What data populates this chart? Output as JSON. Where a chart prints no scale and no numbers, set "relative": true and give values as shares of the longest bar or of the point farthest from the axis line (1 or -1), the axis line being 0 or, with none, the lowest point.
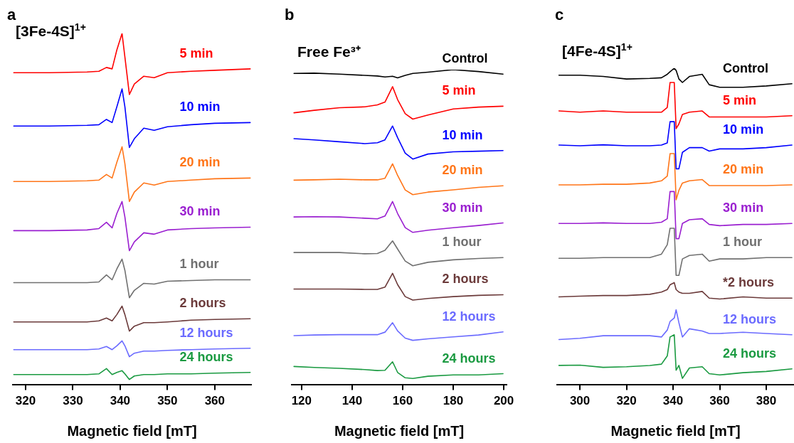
{
  "chart_data": [
    {
      "type": "line",
      "title": "a",
      "subtitle": "[3Fe-4S]$^{1+}$",
      "xlabel": "Magnetic field [mT]",
      "relative": true,
      "legend": false,
      "marker": "none",
      "tick_labels": "x",
      "xlim": [
        317.3,
        367.7
      ],
      "xticks": [
        320,
        330,
        340,
        350,
        360
      ],
      "x": [
        317.5,
        325,
        333,
        335.5,
        337.1,
        338.3,
        339.3,
        340.4,
        341.0,
        341.95,
        343,
        345,
        347.2,
        350,
        355,
        360,
        367.5
      ],
      "series": [
        {
          "name": "5 min",
          "color": "#ff0000",
          "values": [
            0.888,
            0.888,
            0.89,
            0.892,
            0.903,
            0.899,
            0.953,
            1.0,
            0.933,
            0.826,
            0.856,
            0.878,
            0.874,
            0.888,
            0.892,
            0.895,
            0.899
          ]
        },
        {
          "name": "10 min",
          "color": "#0000ff",
          "values": [
            0.736,
            0.736,
            0.738,
            0.74,
            0.755,
            0.746,
            0.791,
            0.842,
            0.791,
            0.675,
            0.7,
            0.73,
            0.724,
            0.734,
            0.74,
            0.744,
            0.746
          ]
        },
        {
          "name": "20 min",
          "color": "#ff7518",
          "values": [
            0.578,
            0.578,
            0.58,
            0.582,
            0.598,
            0.588,
            0.633,
            0.677,
            0.629,
            0.521,
            0.548,
            0.574,
            0.568,
            0.578,
            0.582,
            0.586,
            0.588
          ]
        },
        {
          "name": "30 min",
          "color": "#9a1fd0",
          "values": [
            0.438,
            0.438,
            0.44,
            0.444,
            0.462,
            0.446,
            0.487,
            0.521,
            0.477,
            0.381,
            0.406,
            0.432,
            0.428,
            0.44,
            0.444,
            0.446,
            0.448
          ]
        },
        {
          "name": "1 hour",
          "color": "#707070",
          "values": [
            0.29,
            0.29,
            0.29,
            0.292,
            0.312,
            0.298,
            0.329,
            0.357,
            0.325,
            0.247,
            0.268,
            0.288,
            0.286,
            0.294,
            0.296,
            0.298,
            0.298
          ]
        },
        {
          "name": "2 hours",
          "color": "#6b3a3a",
          "values": [
            0.178,
            0.178,
            0.178,
            0.181,
            0.189,
            0.181,
            0.199,
            0.223,
            0.199,
            0.152,
            0.166,
            0.176,
            0.176,
            0.178,
            0.183,
            0.185,
            0.187
          ]
        },
        {
          "name": "12 hours",
          "color": "#6b6bff",
          "values": [
            0.099,
            0.099,
            0.099,
            0.101,
            0.108,
            0.099,
            0.11,
            0.124,
            0.11,
            0.079,
            0.089,
            0.095,
            0.095,
            0.097,
            0.099,
            0.101,
            0.103
          ]
        },
        {
          "name": "24 hours",
          "color": "#1a9a41",
          "values": [
            0.028,
            0.028,
            0.028,
            0.03,
            0.045,
            0.028,
            0.034,
            0.039,
            0.03,
            0.014,
            0.024,
            0.028,
            0.028,
            0.03,
            0.03,
            0.032,
            0.034
          ]
        }
      ]
    },
    {
      "type": "line",
      "title": "b",
      "subtitle": "Free Fe³⁺",
      "xlabel": "Magnetic field [mT]",
      "relative": true,
      "legend": false,
      "marker": "none",
      "tick_labels": "x",
      "xlim": [
        116.1,
        201.1
      ],
      "xticks": [
        120,
        140,
        160,
        180,
        200
      ],
      "x": [
        117,
        125,
        135,
        145,
        150,
        153,
        156,
        158,
        161,
        164,
        170,
        180,
        190,
        199.7
      ],
      "series": [
        {
          "name": "Control",
          "color": "#000000",
          "values": [
            0.988,
            0.989,
            0.986,
            0.982,
            0.98,
            0.977,
            0.979,
            0.974,
            0.982,
            0.988,
            0.992,
            1.0,
            0.994,
            0.986
          ]
        },
        {
          "name": "5 min",
          "color": "#ff0000",
          "values": [
            0.863,
            0.871,
            0.879,
            0.882,
            0.888,
            0.897,
            0.946,
            0.905,
            0.86,
            0.843,
            0.856,
            0.875,
            0.881,
            0.884
          ]
        },
        {
          "name": "10 min",
          "color": "#0000ff",
          "values": [
            0.781,
            0.777,
            0.771,
            0.765,
            0.768,
            0.777,
            0.821,
            0.784,
            0.735,
            0.716,
            0.732,
            0.739,
            0.741,
            0.743
          ]
        },
        {
          "name": "20 min",
          "color": "#ff7518",
          "values": [
            0.649,
            0.65,
            0.652,
            0.65,
            0.65,
            0.655,
            0.701,
            0.664,
            0.618,
            0.603,
            0.611,
            0.618,
            0.626,
            0.631
          ]
        },
        {
          "name": "30 min",
          "color": "#9a1fd0",
          "values": [
            0.532,
            0.533,
            0.532,
            0.528,
            0.526,
            0.535,
            0.581,
            0.543,
            0.498,
            0.483,
            0.49,
            0.498,
            0.505,
            0.513
          ]
        },
        {
          "name": "1 hour",
          "color": "#707070",
          "values": [
            0.419,
            0.419,
            0.419,
            0.415,
            0.416,
            0.426,
            0.456,
            0.43,
            0.392,
            0.377,
            0.388,
            0.396,
            0.4,
            0.403
          ]
        },
        {
          "name": "2 hours",
          "color": "#6b3a3a",
          "values": [
            0.303,
            0.303,
            0.303,
            0.302,
            0.302,
            0.309,
            0.353,
            0.317,
            0.279,
            0.268,
            0.273,
            0.279,
            0.283,
            0.285
          ]
        },
        {
          "name": "12 hours",
          "color": "#6b6bff",
          "values": [
            0.155,
            0.157,
            0.158,
            0.158,
            0.158,
            0.166,
            0.196,
            0.17,
            0.147,
            0.14,
            0.145,
            0.151,
            0.157,
            0.167
          ]
        },
        {
          "name": "24 hours",
          "color": "#1a9a41",
          "values": [
            0.057,
            0.054,
            0.051,
            0.047,
            0.044,
            0.045,
            0.072,
            0.038,
            0.021,
            0.019,
            0.026,
            0.03,
            0.03,
            0.034
          ]
        }
      ]
    },
    {
      "type": "line",
      "title": "c",
      "subtitle": "[4Fe-4S]$^{1+}$",
      "xlabel": "Magnetic field [mT]",
      "relative": true,
      "legend": false,
      "marker": "none",
      "tick_labels": "x",
      "xlim": [
        290.2,
        391.9
      ],
      "xticks": [
        300,
        320,
        340,
        360,
        380
      ],
      "x": [
        291,
        300,
        310,
        320,
        330,
        335,
        337.5,
        338.7,
        340.5,
        341.3,
        342.5,
        344,
        347,
        352.5,
        355.5,
        360,
        370,
        380,
        391
      ],
      "series": [
        {
          "name": "Control",
          "color": "#000000",
          "values": [
            0.978,
            0.978,
            0.974,
            0.966,
            0.968,
            0.97,
            0.981,
            0.989,
            1.0,
            0.993,
            0.966,
            0.955,
            0.974,
            0.981,
            0.948,
            0.94,
            0.94,
            0.944,
            0.951
          ]
        },
        {
          "name": "5 min",
          "color": "#ff0000",
          "values": [
            0.865,
            0.861,
            0.865,
            0.861,
            0.861,
            0.861,
            0.876,
            0.955,
            0.955,
            0.809,
            0.824,
            0.854,
            0.861,
            0.865,
            0.846,
            0.846,
            0.846,
            0.846,
            0.85
          ]
        },
        {
          "name": "10 min",
          "color": "#0000ff",
          "values": [
            0.757,
            0.755,
            0.758,
            0.755,
            0.755,
            0.757,
            0.764,
            0.831,
            0.831,
            0.682,
            0.682,
            0.734,
            0.749,
            0.749,
            0.738,
            0.745,
            0.745,
            0.749,
            0.757
          ]
        },
        {
          "name": "20 min",
          "color": "#ff7518",
          "values": [
            0.631,
            0.631,
            0.633,
            0.633,
            0.637,
            0.644,
            0.659,
            0.73,
            0.73,
            0.584,
            0.614,
            0.637,
            0.644,
            0.648,
            0.629,
            0.629,
            0.629,
            0.629,
            0.631
          ]
        },
        {
          "name": "30 min",
          "color": "#9a1fd0",
          "values": [
            0.509,
            0.509,
            0.511,
            0.509,
            0.509,
            0.513,
            0.524,
            0.61,
            0.61,
            0.461,
            0.461,
            0.509,
            0.521,
            0.524,
            0.506,
            0.502,
            0.506,
            0.506,
            0.509
          ]
        },
        {
          "name": "1 hour",
          "color": "#707070",
          "values": [
            0.399,
            0.399,
            0.401,
            0.401,
            0.401,
            0.412,
            0.442,
            0.494,
            0.494,
            0.345,
            0.345,
            0.397,
            0.408,
            0.412,
            0.39,
            0.397,
            0.397,
            0.401,
            0.401
          ]
        },
        {
          "name": "*2 hours",
          "color": "#6b3a3a",
          "values": [
            0.277,
            0.279,
            0.281,
            0.281,
            0.285,
            0.292,
            0.3,
            0.315,
            0.322,
            0.3,
            0.292,
            0.288,
            0.288,
            0.294,
            0.273,
            0.27,
            0.277,
            0.273,
            0.273
          ]
        },
        {
          "name": "12 hours",
          "color": "#6b6bff",
          "values": [
            0.142,
            0.146,
            0.154,
            0.154,
            0.154,
            0.15,
            0.172,
            0.199,
            0.21,
            0.236,
            0.195,
            0.15,
            0.176,
            0.169,
            0.161,
            0.161,
            0.165,
            0.161,
            0.157
          ]
        },
        {
          "name": "24 hours",
          "color": "#1a9a41",
          "values": [
            0.06,
            0.061,
            0.054,
            0.056,
            0.06,
            0.064,
            0.09,
            0.15,
            0.157,
            0.045,
            0.06,
            0.019,
            0.052,
            0.056,
            0.034,
            0.03,
            0.037,
            0.041,
            0.049
          ]
        }
      ]
    }
  ]
}
